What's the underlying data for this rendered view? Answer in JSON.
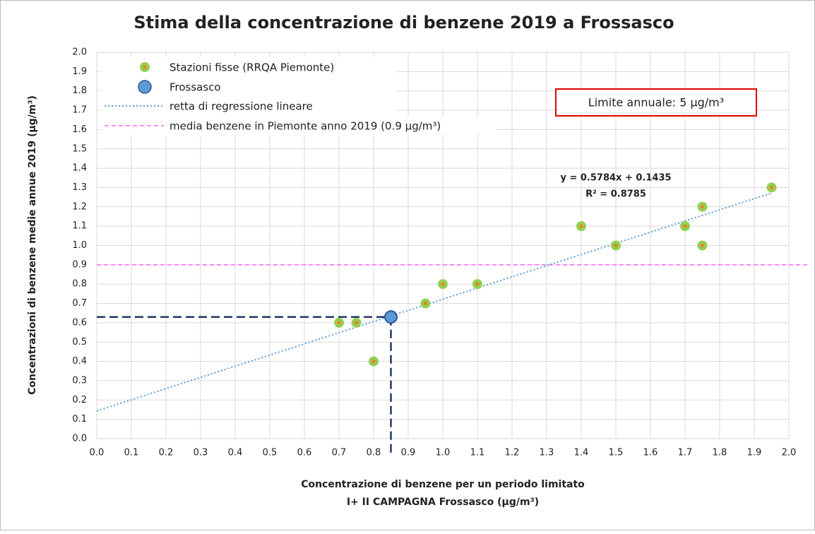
{
  "chart_data": {
    "type": "scatter",
    "title": "Stima della concentrazione di benzene 2019 a Frossasco",
    "x_label": [
      "Concentrazione di benzene per un periodo limitato",
      "I+ II CAMPAGNA Frossasco (µg/m³)"
    ],
    "y_label": "Concentrazioni di benzene medie annue 2019 (µg/m³)",
    "series": [
      {
        "name": "Stazioni fisse (RRQA Piemonte)",
        "color": "#92d050",
        "center_color": "#ed7d31",
        "x": [
          0.7,
          0.75,
          0.8,
          0.95,
          1.0,
          1.1,
          1.4,
          1.5,
          1.7,
          1.75,
          1.75,
          1.95
        ],
        "values": [
          0.6,
          0.6,
          0.4,
          0.7,
          0.8,
          0.8,
          1.1,
          1.0,
          1.1,
          1.2,
          1.0,
          1.3
        ]
      },
      {
        "name": "Frossasco",
        "color": "#5b9bd5",
        "edge_color": "#2f5597",
        "x": [
          0.85
        ],
        "values": [
          0.63
        ]
      }
    ],
    "trendline": {
      "name": "retta di regressione lineare",
      "color": "#5b9bd5",
      "equation": "y = 0.5784x + 0.1435",
      "r2": "R² = 0.8785",
      "slope": 0.5784,
      "intercept": 0.1435,
      "xlim": [
        0,
        1.95
      ]
    },
    "reference_line": {
      "name": "media benzene in Piemonte anno 2019 (0.9 µg/m³)",
      "value": 0.9,
      "color": "#ff66ff"
    },
    "annotation": "Limite annuale: 5 µg/m³",
    "xlim": [
      0,
      2
    ],
    "ylim": [
      0,
      2
    ],
    "xticks": [
      {
        "value": 0,
        "label": "0.0"
      },
      {
        "value": 0.1,
        "label": "0.1"
      },
      {
        "value": 0.2,
        "label": "0.2"
      },
      {
        "value": 0.3,
        "label": "0.3"
      },
      {
        "value": 0.4,
        "label": "0.4"
      },
      {
        "value": 0.5,
        "label": "0.5"
      },
      {
        "value": 0.6,
        "label": "0.6"
      },
      {
        "value": 0.7,
        "label": "0.7"
      },
      {
        "value": 0.8,
        "label": "0.8"
      },
      {
        "value": 0.9,
        "label": "0.9"
      },
      {
        "value": 1,
        "label": "1.0"
      },
      {
        "value": 1.1,
        "label": "1.1"
      },
      {
        "value": 1.2,
        "label": "1.2"
      },
      {
        "value": 1.3,
        "label": "1.3"
      },
      {
        "value": 1.4,
        "label": "1.4"
      },
      {
        "value": 1.5,
        "label": "1.5"
      },
      {
        "value": 1.6,
        "label": "1.6"
      },
      {
        "value": 1.7,
        "label": "1.7"
      },
      {
        "value": 1.8,
        "label": "1.8"
      },
      {
        "value": 1.9,
        "label": "1.9"
      },
      {
        "value": 2,
        "label": "2.0"
      }
    ],
    "yticks": [
      {
        "value": 0,
        "label": "0.0"
      },
      {
        "value": 0.1,
        "label": "0.1"
      },
      {
        "value": 0.2,
        "label": "0.2"
      },
      {
        "value": 0.3,
        "label": "0.3"
      },
      {
        "value": 0.4,
        "label": "0.4"
      },
      {
        "value": 0.5,
        "label": "0.5"
      },
      {
        "value": 0.6,
        "label": "0.6"
      },
      {
        "value": 0.7,
        "label": "0.7"
      },
      {
        "value": 0.8,
        "label": "0.8"
      },
      {
        "value": 0.9,
        "label": "0.9"
      },
      {
        "value": 1,
        "label": "1.0"
      },
      {
        "value": 1.1,
        "label": "1.1"
      },
      {
        "value": 1.2,
        "label": "1.2"
      },
      {
        "value": 1.3,
        "label": "1.3"
      },
      {
        "value": 1.4,
        "label": "1.4"
      },
      {
        "value": 1.5,
        "label": "1.5"
      },
      {
        "value": 1.6,
        "label": "1.6"
      },
      {
        "value": 1.7,
        "label": "1.7"
      },
      {
        "value": 1.8,
        "label": "1.8"
      },
      {
        "value": 1.9,
        "label": "1.9"
      },
      {
        "value": 2,
        "label": "2.0"
      }
    ],
    "grid": true,
    "legend": "top-left"
  }
}
